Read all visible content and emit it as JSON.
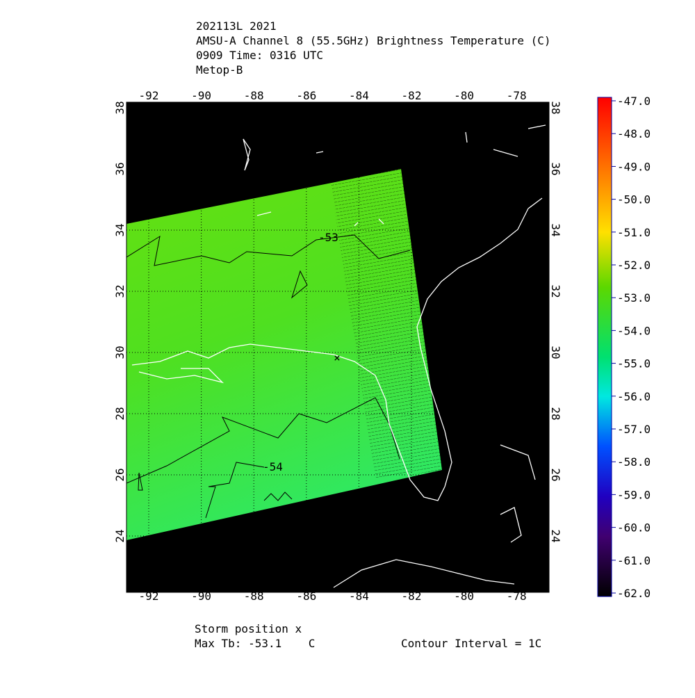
{
  "header": {
    "lines": [
      "202113L 2021",
      "AMSU-A Channel 8 (55.5GHz) Brightness Temperature (C)",
      "0909 Time: 0316 UTC",
      "Metop-B"
    ]
  },
  "map": {
    "lon_ticks": [
      -92,
      -90,
      -88,
      -86,
      -84,
      -82,
      -80,
      -78
    ],
    "lat_ticks": [
      38,
      36,
      34,
      32,
      30,
      28,
      26,
      24
    ],
    "contour_labels": [
      "-53",
      "-54"
    ]
  },
  "colorbar": {
    "labels": [
      "-47.0",
      "-48.0",
      "-49.0",
      "-50.0",
      "-51.0",
      "-52.0",
      "-53.0",
      "-54.0",
      "-55.0",
      "-56.0",
      "-57.0",
      "-58.0",
      "-59.0",
      "-60.0",
      "-61.0",
      "-62.0"
    ]
  },
  "footer": {
    "storm_position": "Storm position x",
    "max_tb": "Max Tb: -53.1    C",
    "contour_interval": "Contour Interval = 1C"
  }
}
